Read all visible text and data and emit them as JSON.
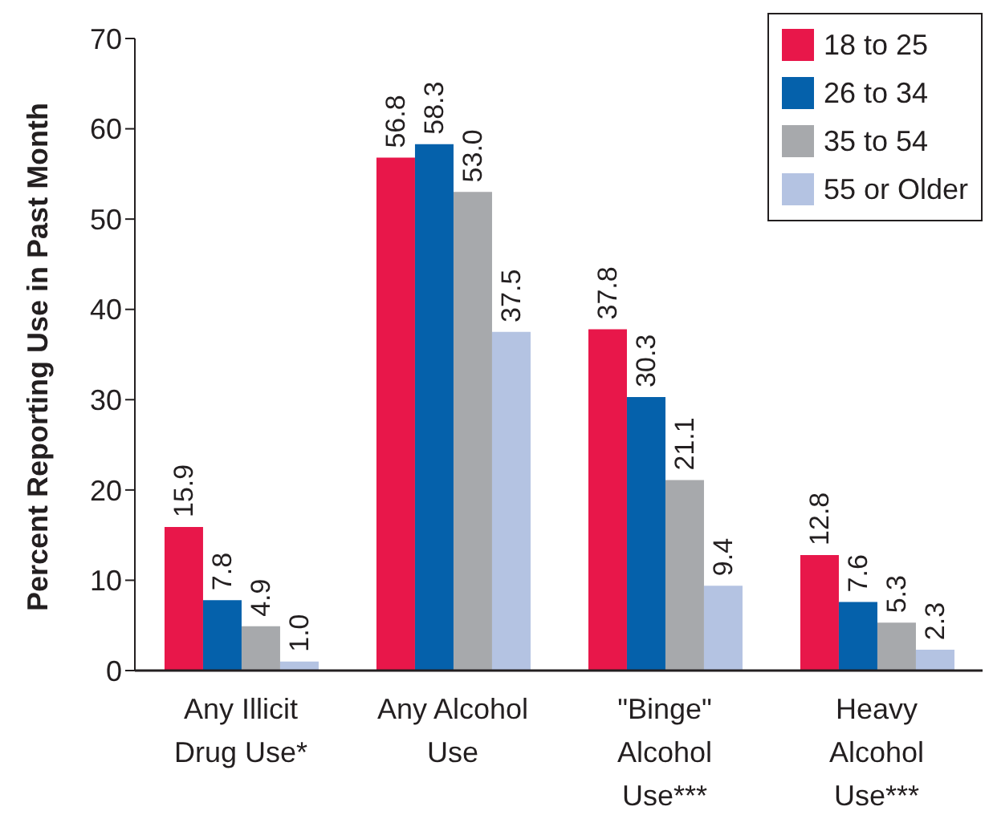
{
  "chart_data": {
    "type": "bar",
    "ylabel": "Percent Reporting Use in Past Month",
    "categories": [
      "Any Illicit\nDrug Use*",
      "Any Alcohol\nUse",
      "\"Binge\"\nAlcohol\nUse***",
      "Heavy\nAlcohol\nUse***"
    ],
    "series": [
      {
        "name": "18 to 25",
        "color": "#e8174a",
        "values": [
          15.9,
          56.8,
          37.8,
          12.8
        ],
        "value_labels": [
          "15.9",
          "56.8",
          "37.8",
          "12.8"
        ]
      },
      {
        "name": "26 to 34",
        "color": "#0561ab",
        "values": [
          7.8,
          58.3,
          30.3,
          7.6
        ],
        "value_labels": [
          "7.8",
          "58.3",
          "30.3",
          "7.6"
        ]
      },
      {
        "name": "35 to 54",
        "color": "#a7a9ac",
        "values": [
          4.9,
          53.0,
          21.1,
          5.3
        ],
        "value_labels": [
          "4.9",
          "53.0",
          "21.1",
          "5.3"
        ]
      },
      {
        "name": "55 or Older",
        "color": "#b4c3e2",
        "values": [
          1.0,
          37.5,
          9.4,
          2.3
        ],
        "value_labels": [
          "1.0",
          "37.5",
          "9.4",
          "2.3"
        ]
      }
    ],
    "ylim": [
      0,
      70
    ],
    "yticks": [
      0,
      10,
      20,
      30,
      40,
      50,
      60,
      70
    ],
    "grid": false,
    "legend": "top right"
  }
}
